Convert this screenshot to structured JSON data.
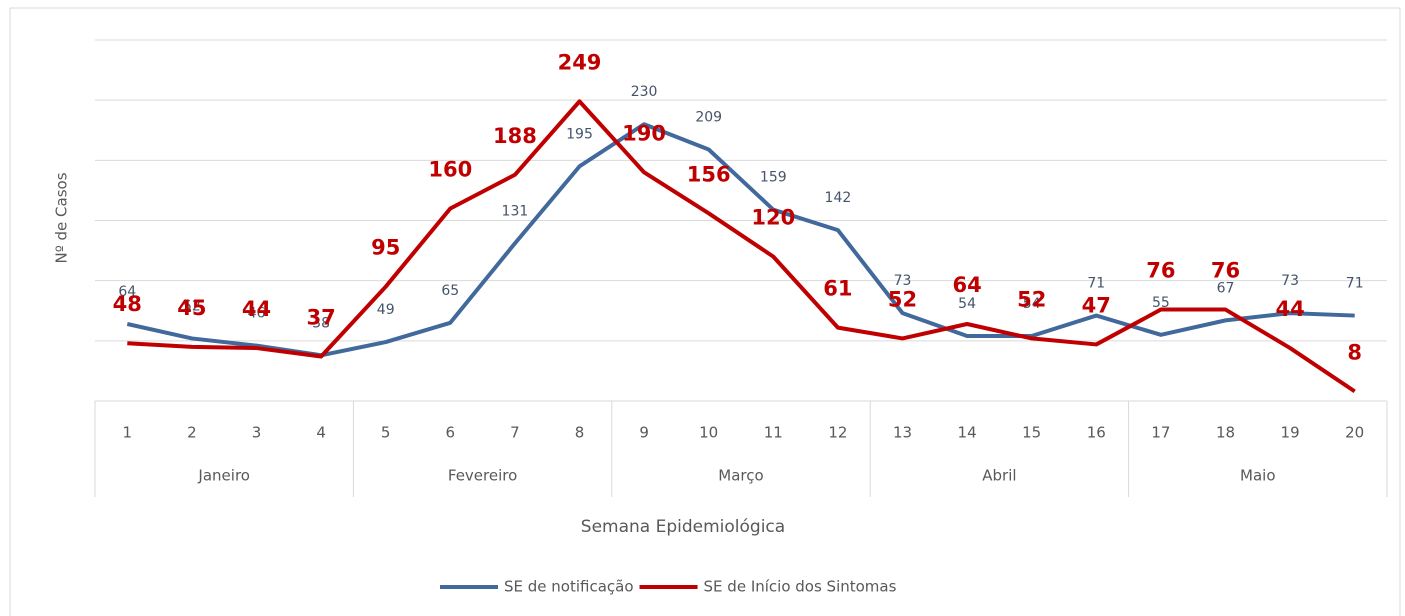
{
  "chart_data": {
    "type": "line",
    "y_label": "Nº de Casos",
    "x_label": "Semana Epidemiológica",
    "categories": [
      "1",
      "2",
      "3",
      "4",
      "5",
      "6",
      "7",
      "8",
      "9",
      "10",
      "11",
      "12",
      "13",
      "14",
      "15",
      "16",
      "17",
      "18",
      "19",
      "20"
    ],
    "groups": [
      "Janeiro",
      "Fevereiro",
      "Março",
      "Abril",
      "Maio"
    ],
    "ylim": [
      0,
      300
    ],
    "yticks": [
      0,
      50,
      100,
      150,
      200,
      250,
      300
    ],
    "grid": true,
    "legend": "bottom",
    "series": [
      {
        "name": "SE de notificação",
        "color": "#41699b",
        "values": [
          64,
          52,
          46,
          38,
          49,
          65,
          131,
          195,
          230,
          209,
          159,
          142,
          73,
          54,
          54,
          71,
          55,
          67,
          73,
          71
        ]
      },
      {
        "name": "SE de Início dos Sintomas",
        "color": "#c00000",
        "values": [
          48,
          45,
          44,
          37,
          95,
          160,
          188,
          249,
          190,
          156,
          120,
          61,
          52,
          64,
          52,
          47,
          76,
          76,
          44,
          8
        ]
      }
    ]
  }
}
